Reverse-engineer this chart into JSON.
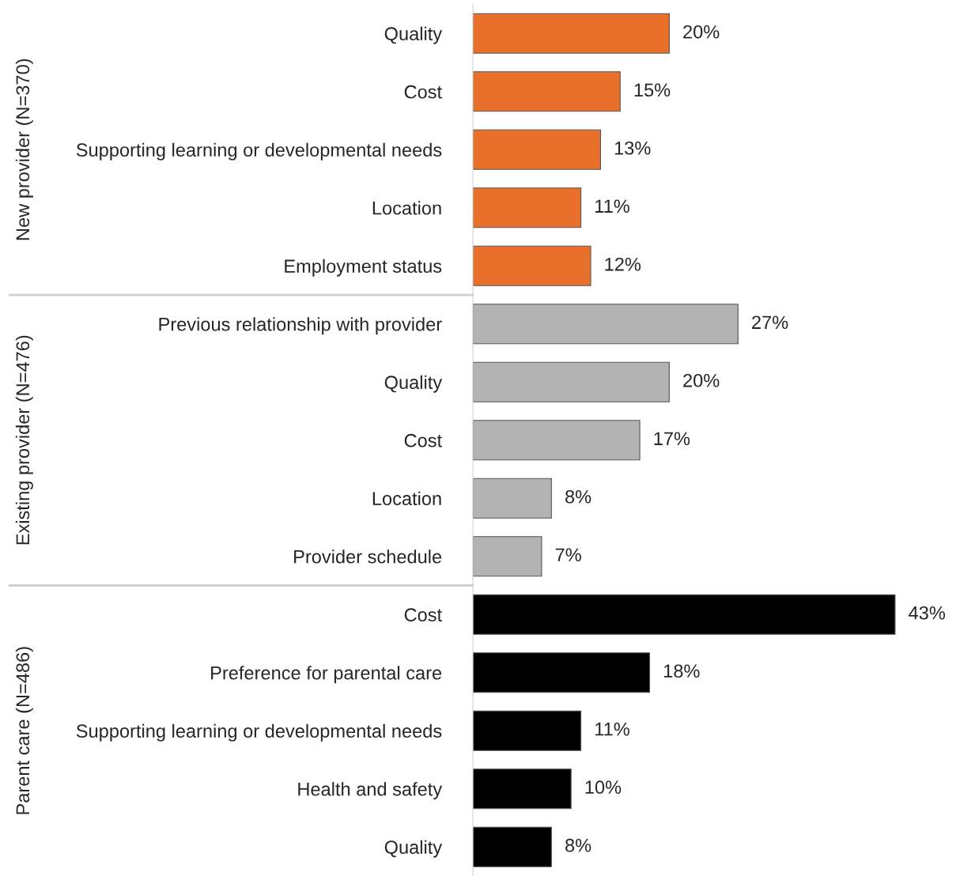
{
  "chart_data": [
    {
      "type": "bar",
      "orientation": "horizontal",
      "ylabel": "New provider (N=370)",
      "categories": [
        "Quality",
        "Cost",
        "Supporting learning or developmental needs",
        "Location",
        "Employment status"
      ],
      "values": [
        20,
        15,
        13,
        11,
        12
      ],
      "value_labels": [
        "20%",
        "15%",
        "13%",
        "11%",
        "12%"
      ],
      "color": "#e8702a"
    },
    {
      "type": "bar",
      "orientation": "horizontal",
      "ylabel": "Existing provider (N=476)",
      "categories": [
        "Previous relationship with provider",
        "Quality",
        "Cost",
        "Location",
        "Provider schedule"
      ],
      "values": [
        27,
        20,
        17,
        8,
        7
      ],
      "value_labels": [
        "27%",
        "20%",
        "17%",
        "8%",
        "7%"
      ],
      "color": "#b3b3b3"
    },
    {
      "type": "bar",
      "orientation": "horizontal",
      "ylabel": "Parent care (N=486)",
      "categories": [
        "Cost",
        "Preference for parental care",
        "Supporting learning or developmental needs",
        "Health and safety",
        "Quality"
      ],
      "values": [
        43,
        18,
        11,
        10,
        8
      ],
      "value_labels": [
        "43%",
        "18%",
        "11%",
        "10%",
        "8%"
      ],
      "color": "#000000"
    }
  ]
}
